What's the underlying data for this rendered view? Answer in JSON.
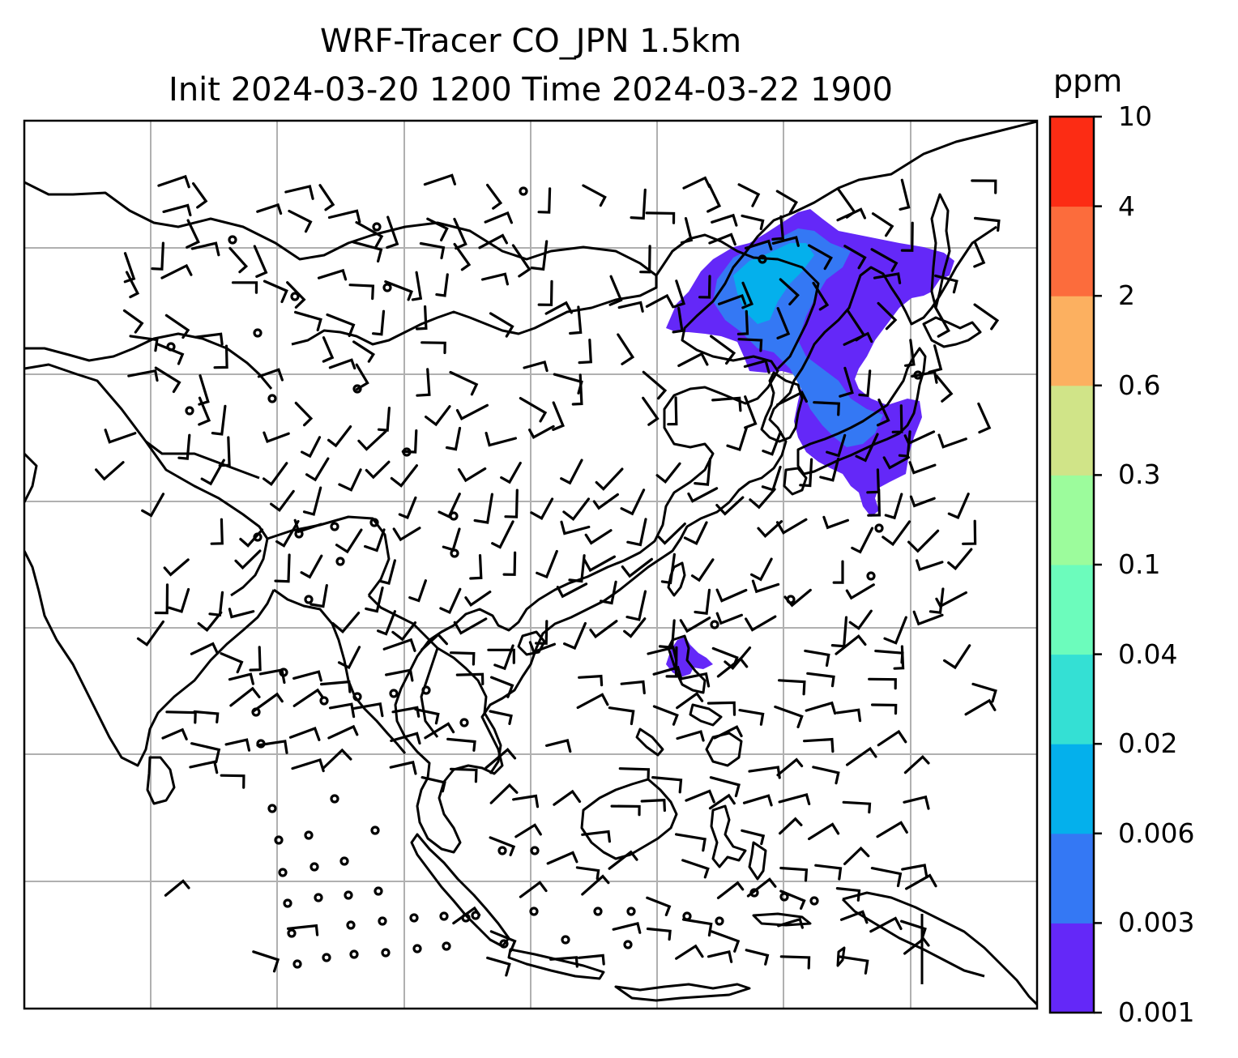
{
  "title": {
    "line1": "WRF-Tracer CO_JPN 1.5km",
    "line2": "Init 2024-03-20 1200 Time 2024-03-22 1900"
  },
  "colorbar": {
    "unit": "ppm",
    "levels": [
      "0.001",
      "0.003",
      "0.006",
      "0.02",
      "0.04",
      "0.1",
      "0.3",
      "0.6",
      "2",
      "4",
      "10"
    ],
    "colors": [
      "#6428f8",
      "#3478f4",
      "#04b0ec",
      "#34e0d4",
      "#6cfcbc",
      "#9cfc9c",
      "#d0e488",
      "#fcb060",
      "#fc6c3c",
      "#fc2c14"
    ]
  },
  "map": {
    "features": [
      "coastlines",
      "gridlines",
      "wind-barbs",
      "co-tracer-shading"
    ],
    "gridline_color": "#b0b0b0",
    "plume_color": "#6428f8",
    "plume_inner_color": "#3478f4",
    "plume_core_color": "#04b0ec"
  }
}
